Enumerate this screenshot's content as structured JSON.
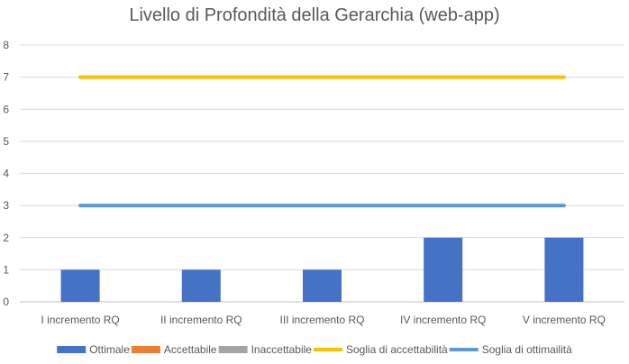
{
  "chart_data": {
    "type": "bar",
    "title": "Livello di Profondità della Gerarchia (web-app)",
    "categories": [
      "I incremento RQ",
      "II incremento RQ",
      "III incremento RQ",
      "IV incremento RQ",
      "V incremento RQ"
    ],
    "ylim": [
      0,
      8
    ],
    "yticks": [
      0,
      1,
      2,
      3,
      4,
      5,
      6,
      7,
      8
    ],
    "grid": true,
    "legend_position": "bottom",
    "series": [
      {
        "name": "Ottimale",
        "kind": "bar",
        "color": "#4472C4",
        "values": [
          1,
          1,
          1,
          2,
          2
        ]
      },
      {
        "name": "Accettabile",
        "kind": "bar",
        "color": "#ED7D31",
        "values": [
          0,
          0,
          0,
          0,
          0
        ]
      },
      {
        "name": "Inaccettabile",
        "kind": "bar",
        "color": "#A5A5A5",
        "values": [
          0,
          0,
          0,
          0,
          0
        ]
      },
      {
        "name": "Soglia di accettabilità",
        "kind": "line",
        "color": "#FFC000",
        "values": [
          7,
          7,
          7,
          7,
          7
        ]
      },
      {
        "name": "Soglia di ottimailità",
        "kind": "line",
        "color": "#5B9BD5",
        "values": [
          3,
          3,
          3,
          3,
          3
        ]
      }
    ]
  }
}
